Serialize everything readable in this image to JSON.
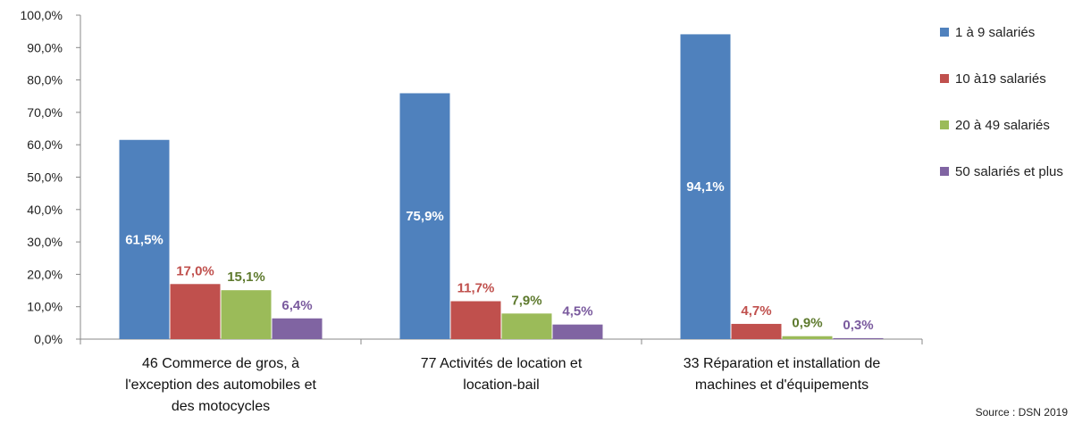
{
  "chart_data": {
    "type": "bar",
    "categories": [
      [
        "46 Commerce de gros, à",
        "l'exception des automobiles et",
        "des motocycles"
      ],
      [
        "77 Activités de location et",
        "location-bail"
      ],
      [
        "33 Réparation et installation de",
        "machines et d'équipements"
      ]
    ],
    "series": [
      {
        "name": "1 à 9 salariés",
        "color": "#4F81BD",
        "label_color": "#FFFFFF",
        "values": [
          61.5,
          75.9,
          94.1
        ],
        "labels": [
          "61,5%",
          "75,9%",
          "94,1%"
        ]
      },
      {
        "name": "10 à19 salariés",
        "color": "#C0504D",
        "label_color": "#C0504D",
        "values": [
          17.0,
          11.7,
          4.7
        ],
        "labels": [
          "17,0%",
          "11,7%",
          "4,7%"
        ]
      },
      {
        "name": "20 à 49 salariés",
        "color": "#9BBB59",
        "label_color": "#5E7A2E",
        "values": [
          15.1,
          7.9,
          0.9
        ],
        "labels": [
          "15,1%",
          "7,9%",
          "0,9%"
        ]
      },
      {
        "name": "50 salariés et plus",
        "color": "#8064A2",
        "label_color": "#7A5A9E",
        "values": [
          6.4,
          4.5,
          0.3
        ],
        "labels": [
          "6,4%",
          "4,5%",
          "0,3%"
        ]
      }
    ],
    "ylim": [
      0,
      100
    ],
    "yticks": [
      "0,0%",
      "10,0%",
      "20,0%",
      "30,0%",
      "40,0%",
      "50,0%",
      "60,0%",
      "70,0%",
      "80,0%",
      "90,0%",
      "100,0%"
    ],
    "legend_position": "right",
    "grid": false
  },
  "source": "Source : DSN 2019"
}
